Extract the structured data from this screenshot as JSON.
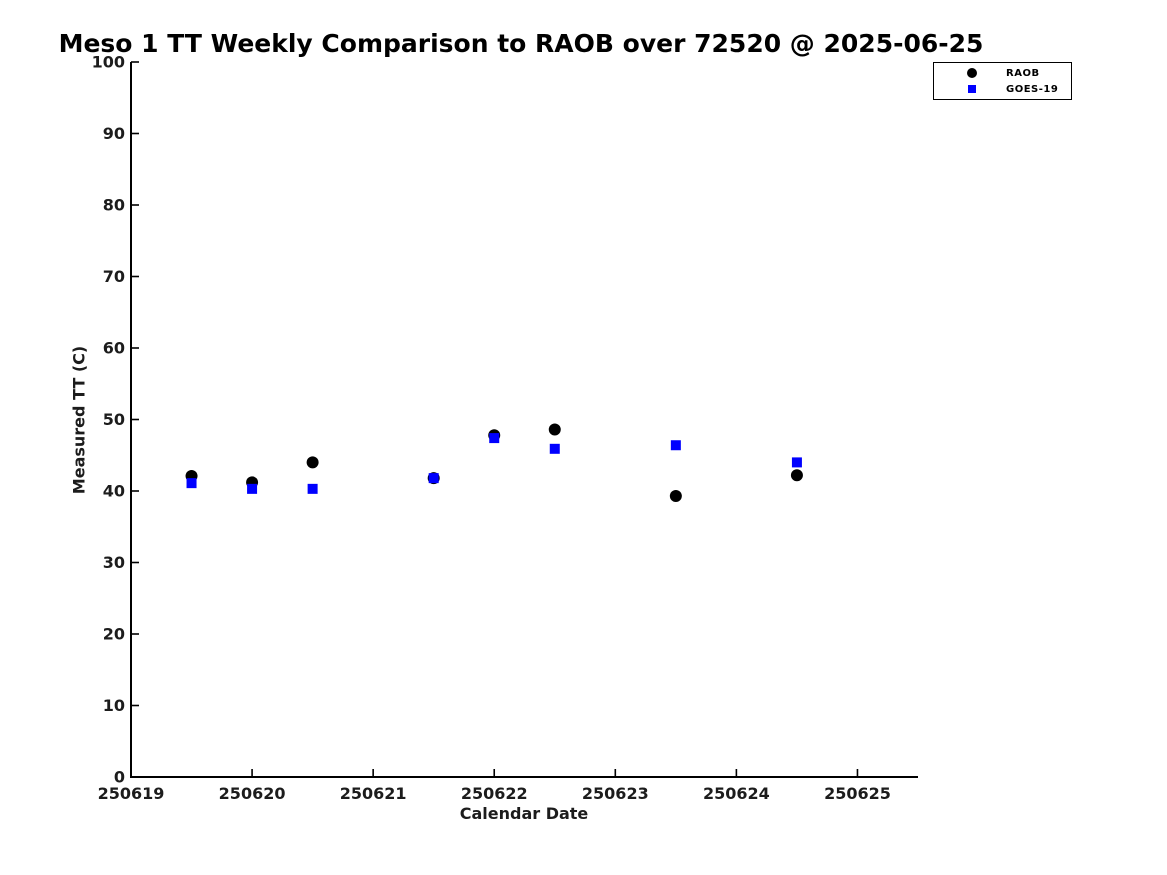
{
  "figure": {
    "title": "Meso 1 TT Weekly Comparison to RAOB over 72520 @ 2025-06-25",
    "xlabel": "Calendar Date",
    "ylabel": "Measured TT (C)"
  },
  "legend": {
    "items": [
      {
        "label": "RAOB",
        "marker": "circle-icon",
        "color": "#000000"
      },
      {
        "label": "GOES-19",
        "marker": "square-icon",
        "color": "#0000ff"
      }
    ]
  },
  "chart_data": {
    "type": "scatter",
    "title": "Meso 1 TT Weekly Comparison to RAOB over 72520 @ 2025-06-25",
    "xlabel": "Calendar Date",
    "ylabel": "Measured TT (C)",
    "xlim": [
      250619,
      250625.5
    ],
    "ylim": [
      0,
      100
    ],
    "x_ticks": [
      250619,
      250620,
      250621,
      250622,
      250623,
      250624,
      250625
    ],
    "y_ticks": [
      0,
      10,
      20,
      30,
      40,
      50,
      60,
      70,
      80,
      90,
      100
    ],
    "grid": false,
    "legend_position": "top-right",
    "series": [
      {
        "name": "RAOB",
        "marker": "circle",
        "color": "#000000",
        "points": [
          [
            250619.5,
            42.1
          ],
          [
            250620.0,
            41.2
          ],
          [
            250620.5,
            44.0
          ],
          [
            250621.5,
            41.8
          ],
          [
            250622.0,
            47.8
          ],
          [
            250622.5,
            48.6
          ],
          [
            250623.5,
            39.3
          ],
          [
            250624.5,
            42.2
          ]
        ]
      },
      {
        "name": "GOES-19",
        "marker": "square",
        "color": "#0000ff",
        "points": [
          [
            250619.5,
            41.1
          ],
          [
            250620.0,
            40.3
          ],
          [
            250620.5,
            40.3
          ],
          [
            250621.5,
            41.8
          ],
          [
            250622.0,
            47.4
          ],
          [
            250622.5,
            45.9
          ],
          [
            250623.5,
            46.4
          ],
          [
            250624.5,
            44.0
          ]
        ]
      }
    ]
  }
}
